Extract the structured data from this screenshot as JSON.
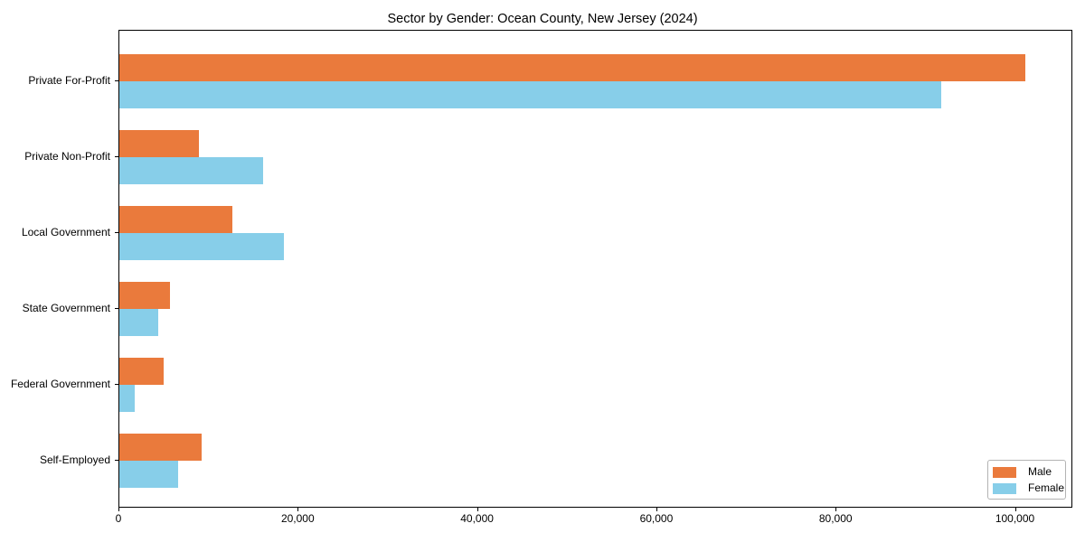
{
  "chart_data": {
    "type": "bar",
    "orientation": "horizontal",
    "title": "Sector by Gender: Ocean County, New Jersey (2024)",
    "categories": [
      "Private For-Profit",
      "Private Non-Profit",
      "Local Government",
      "State Government",
      "Federal Government",
      "Self-Employed"
    ],
    "series": [
      {
        "name": "Male",
        "color": "#EA7A3C",
        "values": [
          101200,
          8900,
          12600,
          5700,
          5000,
          9200
        ]
      },
      {
        "name": "Female",
        "color": "#87CEE9",
        "values": [
          91900,
          16100,
          18400,
          4300,
          1700,
          6600
        ]
      }
    ],
    "xlabel": "",
    "ylabel": "",
    "xlim": [
      0,
      106400
    ],
    "xticks": [
      0,
      20000,
      40000,
      60000,
      80000,
      100000
    ],
    "xtick_labels": [
      "0",
      "20,000",
      "40,000",
      "60,000",
      "80,000",
      "100,000"
    ],
    "grid": false,
    "legend_position": "lower right",
    "legend": {
      "items": [
        {
          "label": "Male",
          "color": "#EA7A3C"
        },
        {
          "label": "Female",
          "color": "#87CEE9"
        }
      ]
    }
  },
  "layout_colors": {
    "axis": "#000000",
    "background": "#ffffff",
    "legend_border": "#b3b3b3"
  }
}
